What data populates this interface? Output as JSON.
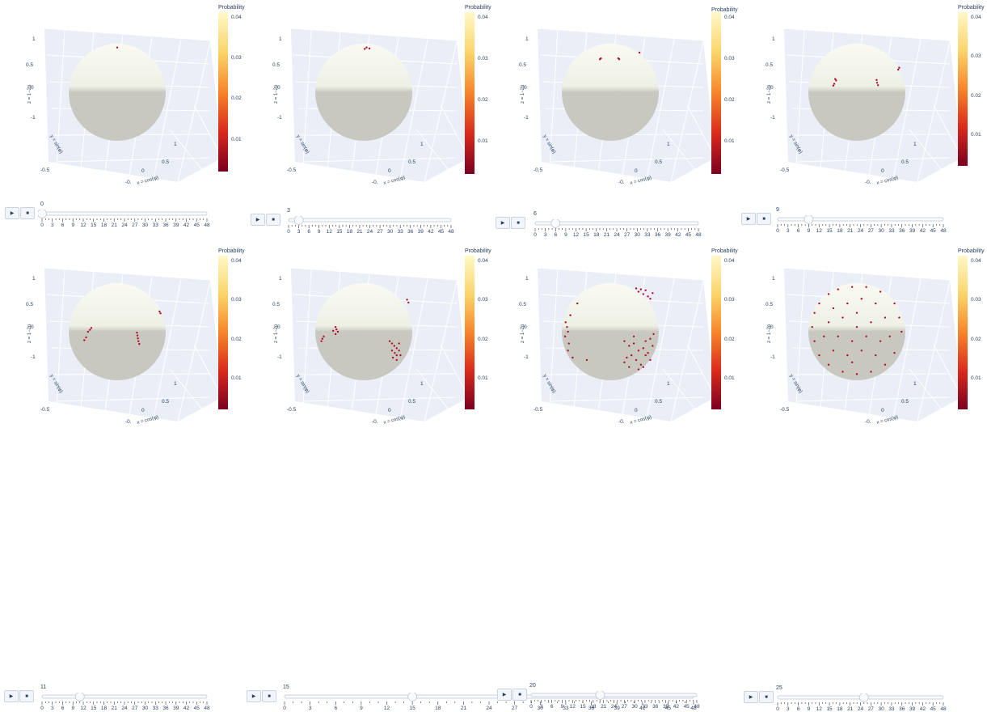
{
  "colorbar": {
    "title": "Probability",
    "ticks": [
      "0.04",
      "0.03",
      "0.02",
      "0.01"
    ]
  },
  "axis_labels": {
    "x": "x = cos(φ)",
    "y": "y = sin(φ)",
    "z": "z = 1−2p"
  },
  "slider_ticks": [
    "0",
    "3",
    "6",
    "9",
    "12",
    "15",
    "18",
    "21",
    "24",
    "27",
    "30",
    "33",
    "36",
    "39",
    "42",
    "45",
    "48"
  ],
  "controls": {
    "play_icon": "▶",
    "stop_icon": "■"
  },
  "colors": {
    "sphere_top": "#fafaf3",
    "sphere_bottom": "#c8c8c0",
    "point": "#b0102a",
    "grid": "#e5ecf6"
  },
  "chart_data": [
    {
      "type": "scatter",
      "frame": "0",
      "points": [
        [
          0.0,
          0.95
        ]
      ]
    },
    {
      "type": "scatter",
      "frame": "3",
      "points": [
        [
          0.02,
          0.92
        ],
        [
          0.12,
          0.93
        ],
        [
          0.06,
          0.95
        ]
      ]
    },
    {
      "type": "scatter",
      "frame": "6",
      "points": [
        [
          -0.2,
          0.72
        ],
        [
          -0.22,
          0.7
        ],
        [
          0.17,
          0.72
        ],
        [
          0.19,
          0.7
        ],
        [
          0.62,
          0.84
        ]
      ]
    },
    {
      "type": "scatter",
      "frame": "9",
      "points": [
        [
          -0.46,
          0.28
        ],
        [
          -0.44,
          0.25
        ],
        [
          -0.48,
          0.18
        ],
        [
          -0.5,
          0.14
        ],
        [
          0.42,
          0.26
        ],
        [
          0.43,
          0.2
        ],
        [
          0.45,
          0.15
        ],
        [
          0.9,
          0.52
        ],
        [
          0.88,
          0.48
        ]
      ]
    },
    {
      "type": "scatter",
      "frame": "11",
      "points": [
        [
          -0.55,
          0.08
        ],
        [
          -0.58,
          0.04
        ],
        [
          -0.62,
          0.0
        ],
        [
          -0.66,
          -0.12
        ],
        [
          -0.7,
          -0.18
        ],
        [
          0.42,
          -0.02
        ],
        [
          0.43,
          -0.08
        ],
        [
          0.44,
          -0.14
        ],
        [
          0.45,
          -0.2
        ],
        [
          0.47,
          -0.26
        ],
        [
          0.9,
          0.43
        ],
        [
          0.92,
          0.39
        ]
      ]
    },
    {
      "type": "scatter",
      "frame": "15",
      "points": [
        [
          -0.6,
          0.1
        ],
        [
          -0.58,
          0.05
        ],
        [
          -0.55,
          0.0
        ],
        [
          -0.6,
          -0.05
        ],
        [
          -0.65,
          0.02
        ],
        [
          -0.85,
          -0.1
        ],
        [
          -0.88,
          -0.15
        ],
        [
          -0.9,
          -0.2
        ],
        [
          0.55,
          -0.2
        ],
        [
          0.6,
          -0.25
        ],
        [
          0.65,
          -0.3
        ],
        [
          0.7,
          -0.35
        ],
        [
          0.75,
          -0.4
        ],
        [
          0.6,
          -0.4
        ],
        [
          0.66,
          -0.45
        ],
        [
          0.7,
          -0.5
        ],
        [
          0.62,
          -0.55
        ],
        [
          0.7,
          -0.6
        ],
        [
          0.78,
          -0.5
        ],
        [
          0.75,
          -0.25
        ],
        [
          0.92,
          0.68
        ],
        [
          0.95,
          0.62
        ]
      ]
    },
    {
      "type": "scatter",
      "frame": "20",
      "points": [
        [
          -0.95,
          0.2
        ],
        [
          -0.92,
          0.1
        ],
        [
          -0.9,
          0.0
        ],
        [
          -0.96,
          -0.1
        ],
        [
          -0.88,
          -0.25
        ],
        [
          -0.9,
          -0.4
        ],
        [
          -0.8,
          -0.55
        ],
        [
          -0.85,
          0.35
        ],
        [
          -0.7,
          0.6
        ],
        [
          -0.5,
          -0.6
        ],
        [
          0.6,
          0.85
        ],
        [
          0.7,
          0.8
        ],
        [
          0.75,
          0.88
        ],
        [
          0.8,
          0.75
        ],
        [
          0.85,
          0.7
        ],
        [
          0.9,
          0.82
        ],
        [
          0.65,
          0.9
        ],
        [
          0.55,
          0.92
        ],
        [
          0.3,
          -0.2
        ],
        [
          0.4,
          -0.3
        ],
        [
          0.5,
          -0.25
        ],
        [
          0.6,
          -0.4
        ],
        [
          0.7,
          -0.35
        ],
        [
          0.75,
          -0.5
        ],
        [
          0.8,
          -0.45
        ],
        [
          0.45,
          -0.5
        ],
        [
          0.35,
          -0.55
        ],
        [
          0.55,
          -0.6
        ],
        [
          0.65,
          -0.7
        ],
        [
          0.7,
          -0.75
        ],
        [
          0.85,
          -0.6
        ],
        [
          0.9,
          -0.3
        ],
        [
          0.5,
          -0.1
        ],
        [
          0.4,
          -0.75
        ],
        [
          0.6,
          -0.8
        ],
        [
          0.3,
          -0.65
        ],
        [
          0.75,
          -0.2
        ],
        [
          0.85,
          -0.15
        ],
        [
          0.92,
          -0.05
        ]
      ]
    },
    {
      "type": "scatter",
      "frame": "25",
      "points": [
        [
          -0.9,
          0.4
        ],
        [
          -0.8,
          0.6
        ],
        [
          -0.6,
          0.8
        ],
        [
          -0.4,
          0.9
        ],
        [
          -0.1,
          0.95
        ],
        [
          0.2,
          0.95
        ],
        [
          0.5,
          0.85
        ],
        [
          0.8,
          0.6
        ],
        [
          0.9,
          0.3
        ],
        [
          -0.95,
          0.1
        ],
        [
          -0.9,
          -0.2
        ],
        [
          -0.8,
          -0.5
        ],
        [
          -0.6,
          -0.7
        ],
        [
          -0.3,
          -0.85
        ],
        [
          0.0,
          -0.9
        ],
        [
          0.3,
          -0.85
        ],
        [
          0.6,
          -0.7
        ],
        [
          0.8,
          -0.45
        ],
        [
          0.95,
          0.0
        ],
        [
          -0.5,
          0.5
        ],
        [
          -0.2,
          0.6
        ],
        [
          0.1,
          0.7
        ],
        [
          0.4,
          0.6
        ],
        [
          0.6,
          0.3
        ],
        [
          -0.6,
          0.2
        ],
        [
          -0.3,
          0.3
        ],
        [
          0.0,
          0.4
        ],
        [
          0.3,
          0.2
        ],
        [
          -0.4,
          -0.1
        ],
        [
          -0.1,
          -0.2
        ],
        [
          0.2,
          -0.1
        ],
        [
          0.5,
          -0.2
        ],
        [
          -0.5,
          -0.4
        ],
        [
          -0.2,
          -0.5
        ],
        [
          0.1,
          -0.4
        ],
        [
          0.4,
          -0.5
        ],
        [
          0.7,
          -0.1
        ],
        [
          -0.7,
          -0.1
        ],
        [
          0.0,
          0.1
        ],
        [
          -0.1,
          -0.65
        ]
      ]
    }
  ]
}
